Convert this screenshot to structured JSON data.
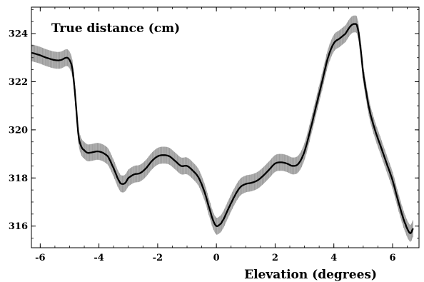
{
  "chart_data": {
    "type": "line",
    "title": "True distance (cm)",
    "xlabel": "Elevation (degrees)",
    "ylabel": "",
    "xlim": [
      -6.3,
      6.9
    ],
    "ylim": [
      315.1,
      325.1
    ],
    "x_ticks": [
      -6,
      -4,
      -2,
      0,
      2,
      4,
      6
    ],
    "y_ticks": [
      316,
      318,
      320,
      322,
      324
    ],
    "x_tick_labels": [
      "-6",
      "-4",
      "-2",
      "0",
      "2",
      "4",
      "6"
    ],
    "y_tick_labels": [
      "316",
      "318",
      "320",
      "322",
      "324"
    ],
    "grid": false,
    "series": [
      {
        "x": [
          -6.3,
          -6.0,
          -5.8,
          -5.5,
          -5.3,
          -5.1,
          -5.0,
          -4.9,
          -4.8,
          -4.7,
          -4.6,
          -4.5,
          -4.4,
          -4.3,
          -4.0,
          -3.7,
          -3.5,
          -3.3,
          -3.2,
          -3.1,
          -3.0,
          -2.8,
          -2.6,
          -2.4,
          -2.2,
          -2.0,
          -1.8,
          -1.6,
          -1.4,
          -1.2,
          -1.0,
          -0.8,
          -0.6,
          -0.4,
          -0.2,
          -0.1,
          0.0,
          0.1,
          0.2,
          0.4,
          0.6,
          0.8,
          1.0,
          1.2,
          1.4,
          1.6,
          1.8,
          2.0,
          2.2,
          2.4,
          2.6,
          2.8,
          3.0,
          3.2,
          3.4,
          3.6,
          3.8,
          4.0,
          4.2,
          4.4,
          4.5,
          4.6,
          4.7,
          4.8,
          4.9,
          5.0,
          5.2,
          5.4,
          5.6,
          5.8,
          6.0,
          6.2,
          6.4,
          6.6,
          6.7
        ],
        "y": [
          323.2,
          323.1,
          323.0,
          322.9,
          322.9,
          323.0,
          322.9,
          322.5,
          321.3,
          319.8,
          319.3,
          319.15,
          319.05,
          319.05,
          319.1,
          318.9,
          318.4,
          317.85,
          317.75,
          317.8,
          318.0,
          318.15,
          318.2,
          318.4,
          318.7,
          318.9,
          318.95,
          318.9,
          318.7,
          318.5,
          318.5,
          318.3,
          318.0,
          317.4,
          316.6,
          316.2,
          316.0,
          316.05,
          316.2,
          316.7,
          317.2,
          317.6,
          317.75,
          317.8,
          317.9,
          318.1,
          318.35,
          318.6,
          318.65,
          318.6,
          318.5,
          318.6,
          319.1,
          320.0,
          321.0,
          322.0,
          323.0,
          323.6,
          323.8,
          324.0,
          324.2,
          324.35,
          324.4,
          324.3,
          323.5,
          322.3,
          320.9,
          320.0,
          319.3,
          318.6,
          317.9,
          317.0,
          316.2,
          315.7,
          315.9
        ]
      }
    ],
    "band_halfwidth": 0.35,
    "colors": {
      "line": "#000000",
      "band": "#b0b0b0",
      "band_hatch": "#8f8f8f"
    }
  }
}
